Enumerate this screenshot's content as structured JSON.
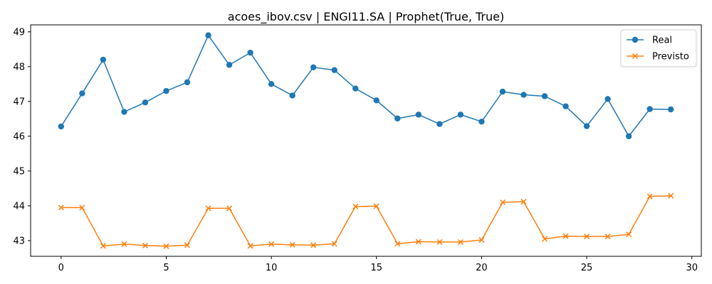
{
  "chart_data": {
    "type": "line",
    "title": "acoes_ibov.csv | ENGI11.SA | Prophet(True, True)",
    "xlabel": "",
    "ylabel": "",
    "xlim": [
      -1.45,
      30.45
    ],
    "ylim": [
      42.55,
      49.2
    ],
    "xticks": [
      0,
      5,
      10,
      15,
      20,
      25,
      30
    ],
    "yticks": [
      43,
      44,
      45,
      46,
      47,
      48,
      49
    ],
    "grid": false,
    "legend_position": "top-right",
    "x": [
      0,
      1,
      2,
      3,
      4,
      5,
      6,
      7,
      8,
      9,
      10,
      11,
      12,
      13,
      14,
      15,
      16,
      17,
      18,
      19,
      20,
      21,
      22,
      23,
      24,
      25,
      26,
      27,
      28,
      29
    ],
    "series": [
      {
        "name": "Real",
        "color": "#1f77b4",
        "marker": "circle",
        "values": [
          46.28,
          47.23,
          48.2,
          46.7,
          46.97,
          47.3,
          47.55,
          48.9,
          48.05,
          48.4,
          47.5,
          47.17,
          47.98,
          47.9,
          47.37,
          47.03,
          46.51,
          46.62,
          46.35,
          46.62,
          46.42,
          47.28,
          47.19,
          47.15,
          46.86,
          46.29,
          47.07,
          46.0,
          46.78,
          46.77
        ]
      },
      {
        "name": "Previsto",
        "color": "#ff7f0e",
        "marker": "x",
        "values": [
          43.95,
          43.95,
          42.85,
          42.9,
          42.86,
          42.84,
          42.87,
          43.93,
          43.93,
          42.85,
          42.9,
          42.88,
          42.87,
          42.91,
          43.98,
          43.99,
          42.91,
          42.97,
          42.96,
          42.96,
          43.02,
          44.1,
          44.12,
          43.05,
          43.13,
          43.12,
          43.12,
          43.18,
          44.27,
          44.29
        ]
      }
    ]
  }
}
